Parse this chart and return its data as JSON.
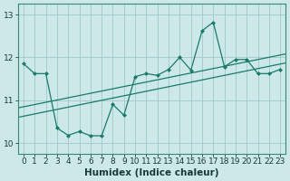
{
  "title": "",
  "xlabel": "Humidex (Indice chaleur)",
  "ylabel": "",
  "background_color": "#cce8e8",
  "grid_color": "#b0d8d8",
  "line_color": "#1a7a6a",
  "x_data": [
    0,
    1,
    2,
    3,
    4,
    5,
    6,
    7,
    8,
    9,
    10,
    11,
    12,
    13,
    14,
    15,
    16,
    17,
    18,
    19,
    20,
    21,
    22,
    23
  ],
  "y_main": [
    11.85,
    11.62,
    11.62,
    10.35,
    10.18,
    10.27,
    10.17,
    10.17,
    10.9,
    10.65,
    11.55,
    11.62,
    11.58,
    11.72,
    12.0,
    11.7,
    12.62,
    12.82,
    11.78,
    11.95,
    11.95,
    11.62,
    11.62,
    11.72
  ],
  "trend1_start": 10.82,
  "trend1_end": 12.08,
  "trend2_start": 10.6,
  "trend2_end": 11.87,
  "ylim_bottom": 9.75,
  "ylim_top": 13.25,
  "xlim_left": -0.5,
  "xlim_right": 23.5,
  "yticks": [
    10,
    11,
    12,
    13
  ],
  "xticks": [
    0,
    1,
    2,
    3,
    4,
    5,
    6,
    7,
    8,
    9,
    10,
    11,
    12,
    13,
    14,
    15,
    16,
    17,
    18,
    19,
    20,
    21,
    22,
    23
  ],
  "tick_fontsize": 6.5,
  "xlabel_fontsize": 7.5
}
